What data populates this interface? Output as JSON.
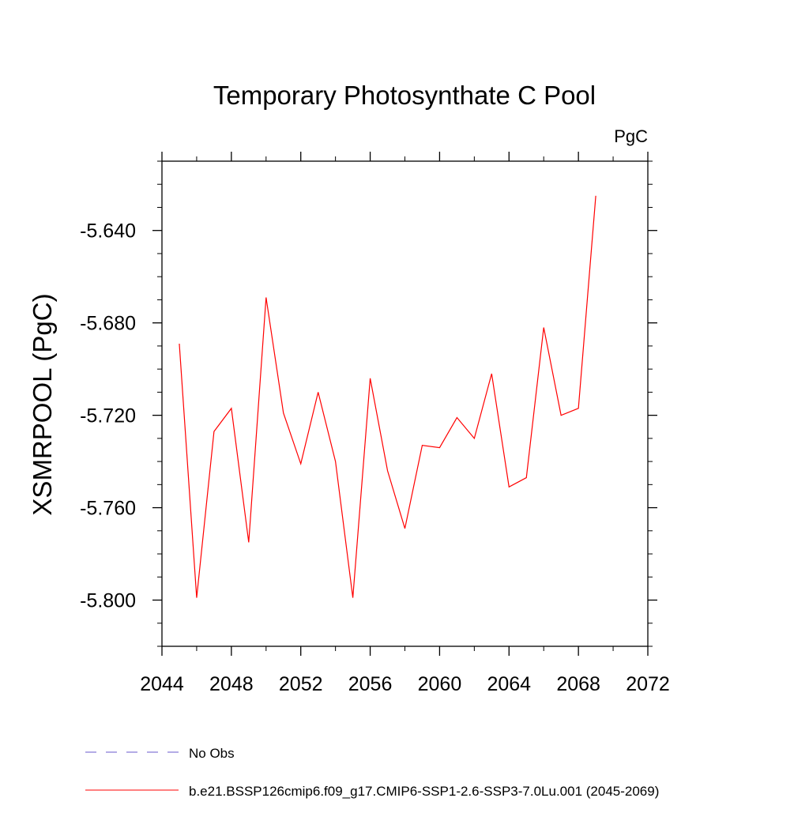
{
  "chart_data": {
    "type": "line",
    "title": "Temporary Photosynthate C Pool",
    "units_label": "PgC",
    "ylabel": "XSMRPOOL  (PgC)",
    "xlabel": "",
    "xlim": [
      2044,
      2072
    ],
    "ylim": [
      -5.82,
      -5.61
    ],
    "x_ticks": [
      2044,
      2048,
      2052,
      2056,
      2060,
      2064,
      2068,
      2072
    ],
    "x_tick_labels": [
      "2044",
      "2048",
      "2052",
      "2056",
      "2060",
      "2064",
      "2068",
      "2072"
    ],
    "y_ticks": [
      -5.64,
      -5.68,
      -5.72,
      -5.76,
      -5.8
    ],
    "y_tick_labels": [
      "-5.640",
      "-5.680",
      "-5.720",
      "-5.760",
      "-5.800"
    ],
    "grid": false,
    "legend_placement": "bottom",
    "legend": [
      {
        "label": "No Obs",
        "color": "#6a5acd",
        "dashed": true
      },
      {
        "label": "b.e21.BSSP126cmip6.f09_g17.CMIP6-SSP1-2.6-SSP3-7.0Lu.001 (2045-2069)",
        "color": "#ff0000",
        "dashed": false
      }
    ],
    "series": [
      {
        "color": "#ff0000",
        "x": [
          2045,
          2046,
          2047,
          2048,
          2049,
          2050,
          2051,
          2052,
          2053,
          2054,
          2055,
          2056,
          2057,
          2058,
          2059,
          2060,
          2061,
          2062,
          2063,
          2064,
          2065,
          2066,
          2067,
          2068,
          2069
        ],
        "values": [
          -5.689,
          -5.799,
          -5.727,
          -5.717,
          -5.775,
          -5.669,
          -5.719,
          -5.741,
          -5.71,
          -5.74,
          -5.799,
          -5.704,
          -5.744,
          -5.769,
          -5.733,
          -5.734,
          -5.721,
          -5.73,
          -5.702,
          -5.751,
          -5.747,
          -5.682,
          -5.72,
          -5.717,
          -5.625
        ]
      }
    ]
  }
}
